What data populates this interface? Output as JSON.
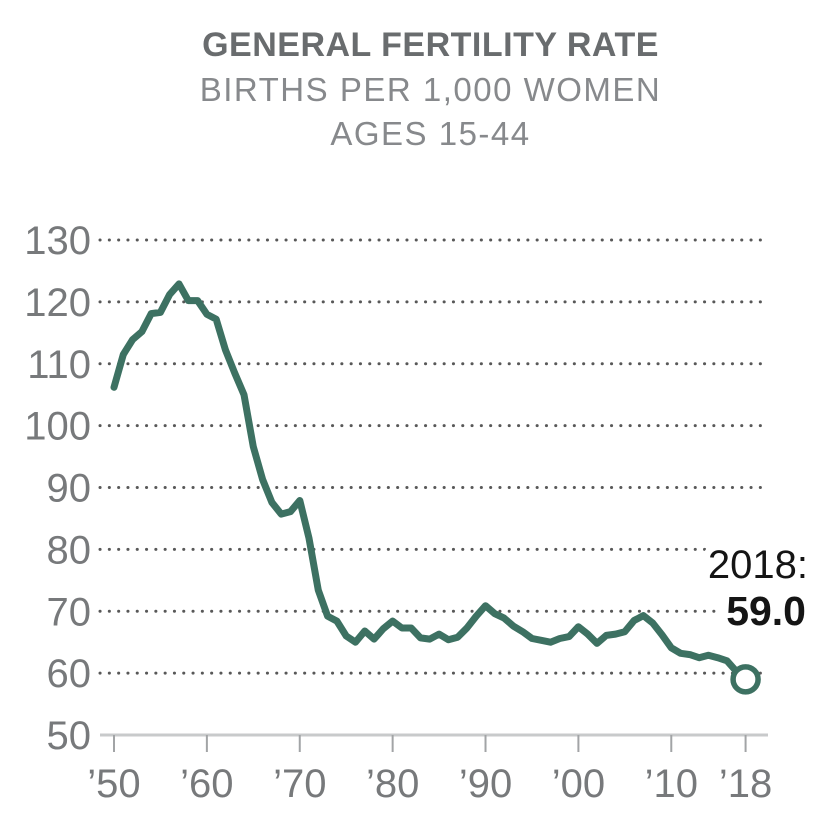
{
  "header": {
    "title": "GENERAL FERTILITY RATE",
    "subtitle_line1": "BIRTHS PER 1,000 WOMEN",
    "subtitle_line2": "AGES 15-44"
  },
  "colors": {
    "line": "#3d7162",
    "marker_fill": "#ffffff",
    "grid_dots": "#585858",
    "axis_line": "#c8cacb",
    "tick": "#a2a4a6",
    "axis_label": "#77797b",
    "title": "#696c6e",
    "subtitle": "#87898c",
    "annotation_text": "#151515"
  },
  "chart_data": {
    "type": "line",
    "title": "GENERAL FERTILITY RATE",
    "subtitle": "BIRTHS PER 1,000 WOMEN AGES 15-44",
    "series_name": "General fertility rate (births per 1,000 women ages 15-44)",
    "grid": "dotted-horizontal",
    "legend": "none",
    "ylim": [
      50,
      130
    ],
    "yticks": [
      50,
      60,
      70,
      80,
      90,
      100,
      110,
      120,
      130
    ],
    "xtick_years": [
      1950,
      1960,
      1970,
      1980,
      1990,
      2000,
      2010,
      2018
    ],
    "xtick_labels": [
      "’50",
      "’60",
      "’70",
      "’80",
      "’90",
      "’00",
      "’10",
      "’18"
    ],
    "years": [
      1950,
      1951,
      1952,
      1953,
      1954,
      1955,
      1956,
      1957,
      1958,
      1959,
      1960,
      1961,
      1962,
      1963,
      1964,
      1965,
      1966,
      1967,
      1968,
      1969,
      1970,
      1971,
      1972,
      1973,
      1974,
      1975,
      1976,
      1977,
      1978,
      1979,
      1980,
      1981,
      1982,
      1983,
      1984,
      1985,
      1986,
      1987,
      1988,
      1989,
      1990,
      1991,
      1992,
      1993,
      1994,
      1995,
      1996,
      1997,
      1998,
      1999,
      2000,
      2001,
      2002,
      2003,
      2004,
      2005,
      2006,
      2007,
      2008,
      2009,
      2010,
      2011,
      2012,
      2013,
      2014,
      2015,
      2016,
      2017,
      2018
    ],
    "values": [
      106.2,
      111.5,
      113.9,
      115.2,
      118.1,
      118.3,
      121.2,
      122.9,
      120.2,
      120.2,
      118.0,
      117.2,
      112.2,
      108.5,
      105.0,
      96.6,
      91.3,
      87.6,
      85.7,
      86.1,
      87.9,
      81.8,
      73.4,
      69.2,
      68.4,
      66.0,
      65.0,
      66.8,
      65.5,
      67.2,
      68.4,
      67.3,
      67.3,
      65.7,
      65.5,
      66.3,
      65.4,
      65.8,
      67.3,
      69.2,
      70.9,
      69.6,
      68.9,
      67.6,
      66.7,
      65.6,
      65.3,
      65.0,
      65.6,
      65.9,
      67.5,
      66.3,
      64.8,
      66.1,
      66.3,
      66.7,
      68.5,
      69.3,
      68.1,
      66.2,
      64.1,
      63.2,
      63.0,
      62.5,
      62.9,
      62.5,
      62.0,
      60.3,
      59.0
    ],
    "end_annotation": {
      "year": 2018,
      "label": "2018:",
      "value_label": "59.0",
      "value": 59.0
    }
  }
}
